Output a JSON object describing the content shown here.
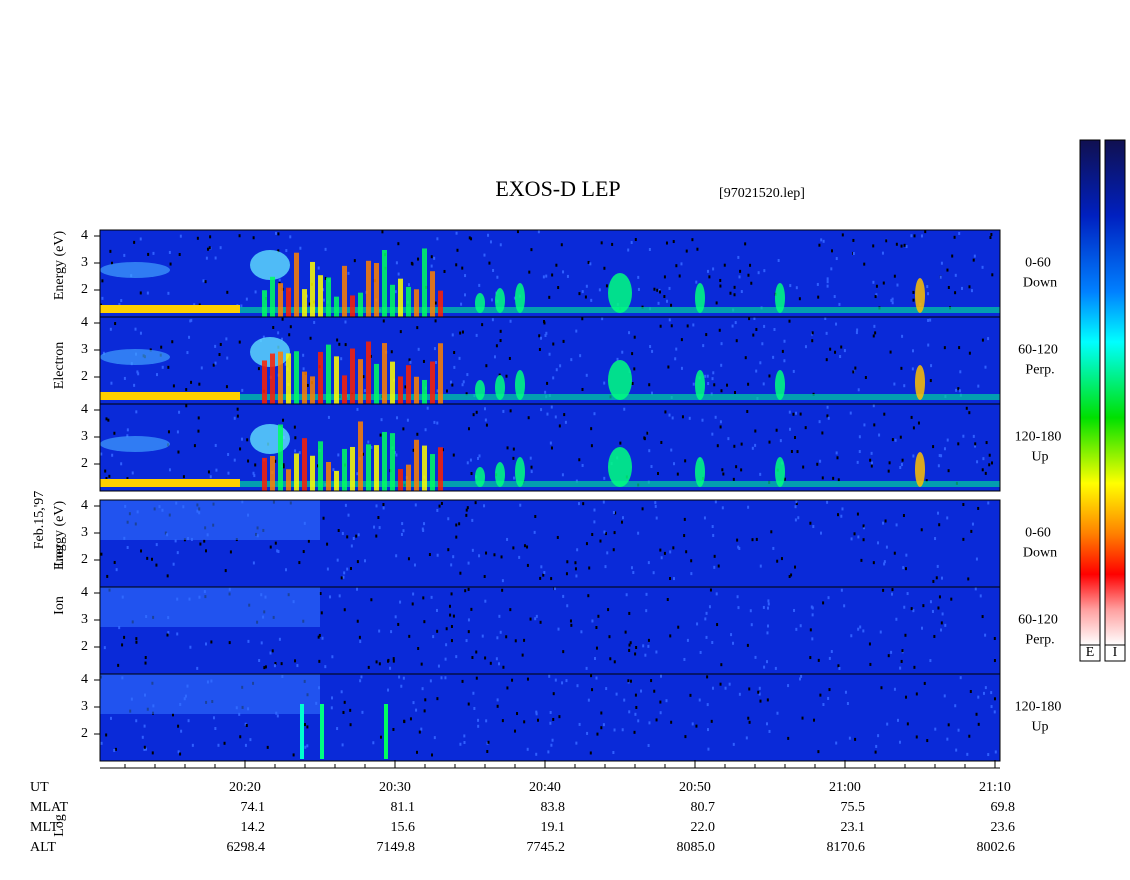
{
  "title": "EXOS-D LEP",
  "file": "[97021520.lep]",
  "date": "Feb.15,'97",
  "electron": {
    "labels": [
      "Log",
      "Electron",
      "Energy (eV)"
    ],
    "panels": [
      {
        "range": "0-60",
        "dir": "Down"
      },
      {
        "range": "60-120",
        "dir": "Perp."
      },
      {
        "range": "120-180",
        "dir": "Up"
      }
    ]
  },
  "ion": {
    "labels": [
      "Log",
      "Ion",
      "Energy (eV)"
    ],
    "panels": [
      {
        "range": "0-60",
        "dir": "Down"
      },
      {
        "range": "60-120",
        "dir": "Perp."
      },
      {
        "range": "120-180",
        "dir": "Up"
      }
    ]
  },
  "yticks": [
    2,
    3,
    4
  ],
  "colorbars": [
    "E",
    "I"
  ],
  "table": {
    "rows": [
      {
        "label": "UT",
        "values": [
          "20:20",
          "20:30",
          "20:40",
          "20:50",
          "21:00",
          "21:10"
        ]
      },
      {
        "label": "MLAT",
        "values": [
          "74.1",
          "81.1",
          "83.8",
          "80.7",
          "75.5",
          "69.8"
        ]
      },
      {
        "label": "MLT",
        "values": [
          "14.2",
          "15.6",
          "19.1",
          "22.0",
          "23.1",
          "23.6"
        ]
      },
      {
        "label": "ALT",
        "values": [
          "6298.4",
          "7149.8",
          "7745.2",
          "8085.0",
          "8170.6",
          "8002.6"
        ]
      }
    ]
  }
}
